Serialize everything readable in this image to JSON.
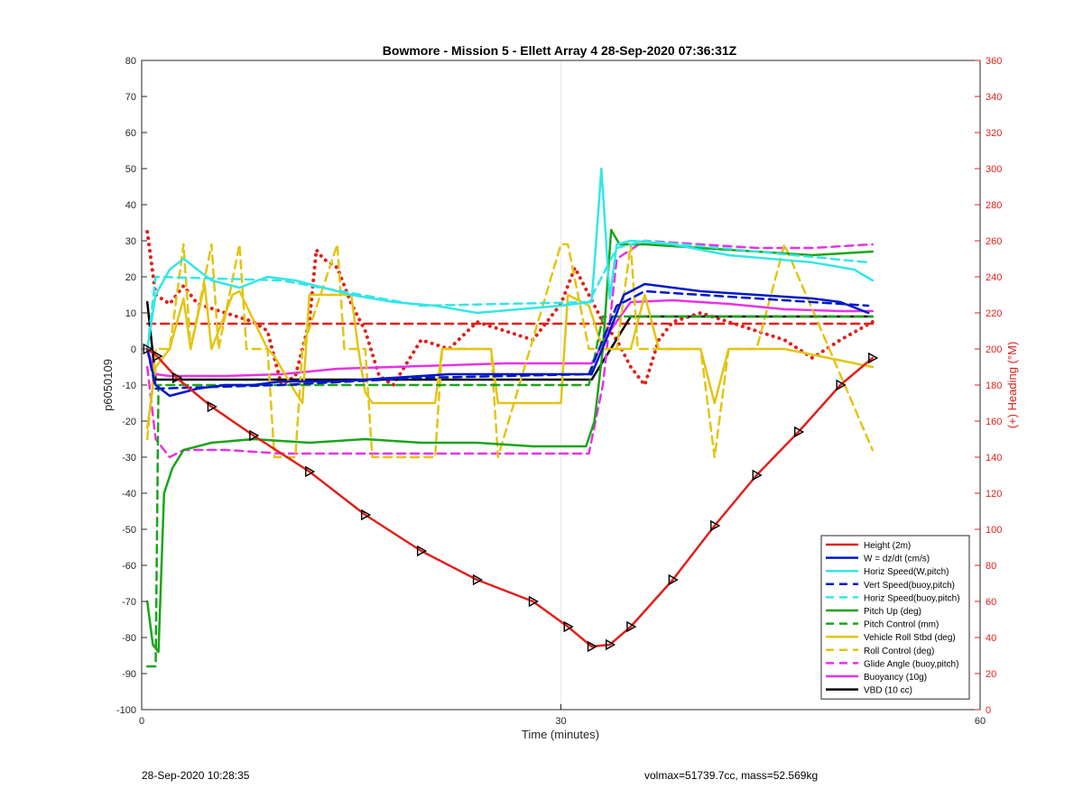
{
  "footer": {
    "left": "28-Sep-2020 10:28:35",
    "right": "volmax=51739.7cc, mass=52.569kg"
  },
  "chart_data": {
    "type": "line",
    "title": "Bowmore - Mission 5 - Ellett Array 4 28-Sep-2020 07:36:31Z",
    "xlabel": "Time (minutes)",
    "ylabel": "p6050109",
    "y2label": "(+) Heading (°M)",
    "xlim": [
      0,
      60
    ],
    "ylim": [
      -100,
      80
    ],
    "y2lim": [
      0,
      360
    ],
    "xticks": [
      0,
      30,
      60
    ],
    "yticks": [
      -100,
      -90,
      -80,
      -70,
      -60,
      -50,
      -40,
      -30,
      -20,
      -10,
      0,
      10,
      20,
      30,
      40,
      50,
      60,
      70,
      80
    ],
    "y2ticks": [
      0,
      20,
      40,
      60,
      80,
      100,
      120,
      140,
      160,
      180,
      200,
      220,
      240,
      260,
      280,
      300,
      320,
      340,
      360
    ],
    "xgrid": [
      30
    ],
    "legend_position": "bottom-right",
    "colors": {
      "red": "#e0211b",
      "blue": "#0018c8",
      "cyan": "#34e6e6",
      "green": "#1aa51a",
      "yellow": "#e3c413",
      "magenta": "#e632e6",
      "black": "#000000"
    },
    "series": [
      {
        "name": "Height (2m)",
        "color": "#e0211b",
        "style": "solid",
        "axis": "left",
        "markers": "triangles",
        "x": [
          0.4,
          1.1,
          2.5,
          5,
          8,
          12,
          16,
          20,
          24,
          28,
          30.5,
          32.2,
          33.5,
          35,
          38,
          41,
          44,
          47,
          50,
          52.3
        ],
        "y": [
          0,
          -2,
          -8,
          -16,
          -24,
          -34,
          -46,
          -56,
          -64,
          -70,
          -77,
          -82.5,
          -82,
          -77,
          -64,
          -49,
          -35,
          -23,
          -10,
          -2.5
        ]
      },
      {
        "name": "W = dz/dt (cm/s)",
        "color": "#0018c8",
        "style": "solid",
        "axis": "left",
        "x": [
          0.4,
          1,
          2,
          4,
          6,
          8,
          10,
          14,
          18,
          22,
          26,
          30,
          32.2,
          33.5,
          34.5,
          36,
          40,
          44,
          48,
          50,
          52
        ],
        "y": [
          0,
          -10,
          -13,
          -11,
          -10,
          -10,
          -9,
          -9,
          -8,
          -7,
          -7,
          -7,
          -7,
          5,
          15,
          18,
          16,
          15,
          14,
          13,
          10
        ]
      },
      {
        "name": "Horiz Speed(W,pitch)",
        "color": "#34e6e6",
        "style": "solid",
        "axis": "left",
        "x": [
          0.4,
          1,
          2,
          3,
          5,
          7,
          9,
          11,
          13,
          15,
          18,
          21,
          24,
          27,
          30,
          32.2,
          32.9,
          33.5,
          34,
          35,
          38,
          42,
          45,
          48,
          51,
          52.3
        ],
        "y": [
          0,
          15,
          22,
          25,
          19,
          17,
          20,
          19,
          17,
          15,
          13,
          12,
          10,
          11,
          12,
          13,
          50,
          14,
          29,
          30,
          29,
          26,
          25,
          24,
          22,
          19
        ]
      },
      {
        "name": "Vert Speed(buoy,pitch)",
        "color": "#0018c8",
        "style": "dashed",
        "axis": "left",
        "x": [
          0.4,
          1,
          10,
          20,
          32,
          34,
          36,
          52
        ],
        "y": [
          0,
          -11,
          -10,
          -8,
          -7,
          12,
          16,
          12
        ]
      },
      {
        "name": "Horiz Speed(buoy,pitch)",
        "color": "#34e6e6",
        "style": "dashed",
        "axis": "left",
        "x": [
          0.4,
          1,
          10,
          20,
          32,
          34,
          36,
          52
        ],
        "y": [
          0,
          20,
          19,
          12,
          13,
          28,
          30,
          24
        ]
      },
      {
        "name": "Pitch Up (deg)",
        "color": "#1aa51a",
        "style": "solid",
        "axis": "left",
        "x": [
          0.4,
          0.8,
          1.2,
          1.6,
          2.2,
          3,
          5,
          8,
          12,
          16,
          20,
          24,
          28,
          31.8,
          32.4,
          33,
          33.6,
          34.2,
          36,
          40,
          44,
          48,
          52.3
        ],
        "y": [
          -70,
          -82,
          -84,
          -40,
          -33,
          -28,
          -26,
          -25,
          -26,
          -25,
          -26,
          -26,
          -27,
          -27,
          -20,
          0,
          33,
          29,
          29,
          28,
          27,
          26,
          27
        ]
      },
      {
        "name": "Pitch Control (mm)",
        "color": "#1aa51a",
        "style": "dashed",
        "axis": "left",
        "x": [
          0.4,
          1,
          1.2,
          2,
          32,
          33,
          34,
          52.3
        ],
        "y": [
          -88,
          -88,
          -10,
          -10,
          -10,
          9,
          9,
          9
        ]
      },
      {
        "name": "Vehicle Roll Stbd (deg)",
        "color": "#e3c413",
        "style": "solid",
        "axis": "left",
        "x": [
          0.4,
          1,
          2,
          3,
          3.5,
          4.5,
          5,
          6.5,
          7,
          9,
          9.5,
          11,
          11.5,
          12,
          15,
          15.5,
          16,
          16.5,
          21,
          21.5,
          25,
          25.5,
          30,
          30.5,
          32,
          33,
          35,
          36,
          37,
          38,
          40,
          41,
          42,
          46,
          52.3
        ],
        "y": [
          -22,
          -5,
          0,
          14,
          0,
          18,
          0,
          15,
          16,
          0,
          -2,
          -12,
          -15,
          15,
          15,
          0,
          -12,
          -15,
          -15,
          0,
          0,
          -15,
          -15,
          15,
          12,
          0,
          0,
          15,
          0,
          0,
          0,
          -15,
          0,
          0,
          -5
        ]
      },
      {
        "name": "Roll Control (deg)",
        "color": "#e3c413",
        "style": "dashed",
        "axis": "left",
        "x": [
          0.4,
          1,
          2,
          3,
          3.5,
          5,
          5.5,
          7,
          7.5,
          9,
          9.5,
          11,
          11.5,
          14,
          14.5,
          16,
          16.5,
          21,
          21.5,
          25,
          25.5,
          30,
          30.5,
          32,
          34,
          35,
          35.5,
          40,
          41,
          42,
          44,
          46,
          52.3
        ],
        "y": [
          -25,
          0,
          0,
          29,
          0,
          29,
          0,
          29,
          0,
          0,
          -30,
          -30,
          0,
          29,
          0,
          0,
          -30,
          -30,
          0,
          0,
          -30,
          29,
          29,
          0,
          0,
          29,
          0,
          0,
          -30,
          0,
          0,
          29,
          -28
        ]
      },
      {
        "name": "Glide Angle (buoy,pitch)",
        "color": "#e632e6",
        "style": "dashed",
        "axis": "left",
        "x": [
          0.4,
          1,
          2,
          3,
          6,
          10,
          14,
          18,
          22,
          26,
          30,
          32,
          33,
          34,
          36,
          40,
          44,
          48,
          52.3
        ],
        "y": [
          -5,
          -25,
          -30,
          -28,
          -28,
          -29,
          -29,
          -29,
          -29,
          -29,
          -29,
          -29,
          -10,
          25,
          30,
          29,
          28,
          28,
          29
        ]
      },
      {
        "name": "Buoyancy (10g)",
        "color": "#e632e6",
        "style": "solid",
        "axis": "left",
        "x": [
          0.4,
          1,
          2,
          6,
          10,
          14,
          18,
          22,
          26,
          30,
          32.2,
          33.5,
          35,
          38,
          42,
          46,
          50,
          52.3
        ],
        "y": [
          0,
          -7,
          -7.5,
          -7.5,
          -7,
          -5.5,
          -5,
          -4.5,
          -4,
          -4,
          -4,
          5,
          13,
          13.5,
          12.5,
          11,
          10.5,
          10.5
        ]
      },
      {
        "name": "VBD (10 cc)",
        "color": "#000000",
        "style": "solid",
        "axis": "left",
        "x": [
          0.4,
          1,
          32.2,
          35,
          52.3
        ],
        "y": [
          13,
          -8.5,
          -8.5,
          9,
          9
        ]
      },
      {
        "name": "",
        "color": "#e0211b",
        "style": "dashed",
        "axis": "right",
        "x": [
          0.4,
          52.3
        ],
        "y": [
          214,
          214
        ]
      },
      {
        "name": "",
        "color": "#e0211b",
        "style": "dotted",
        "axis": "right",
        "x": [
          0.4,
          1,
          2,
          3,
          4,
          6,
          8,
          9,
          10,
          11,
          12,
          12.5,
          13,
          14,
          15,
          16,
          17,
          18,
          20,
          22,
          24,
          26,
          28,
          29,
          30,
          31,
          32,
          33,
          34,
          35,
          36,
          37,
          38,
          40,
          42,
          44,
          46,
          48,
          50,
          52.3
        ],
        "y": [
          265,
          230,
          225,
          235,
          225,
          220,
          215,
          210,
          180,
          185,
          215,
          255,
          250,
          245,
          225,
          210,
          185,
          180,
          205,
          200,
          215,
          210,
          205,
          215,
          225,
          245,
          230,
          215,
          205,
          190,
          180,
          205,
          215,
          220,
          215,
          210,
          205,
          195,
          205,
          215
        ]
      }
    ]
  }
}
